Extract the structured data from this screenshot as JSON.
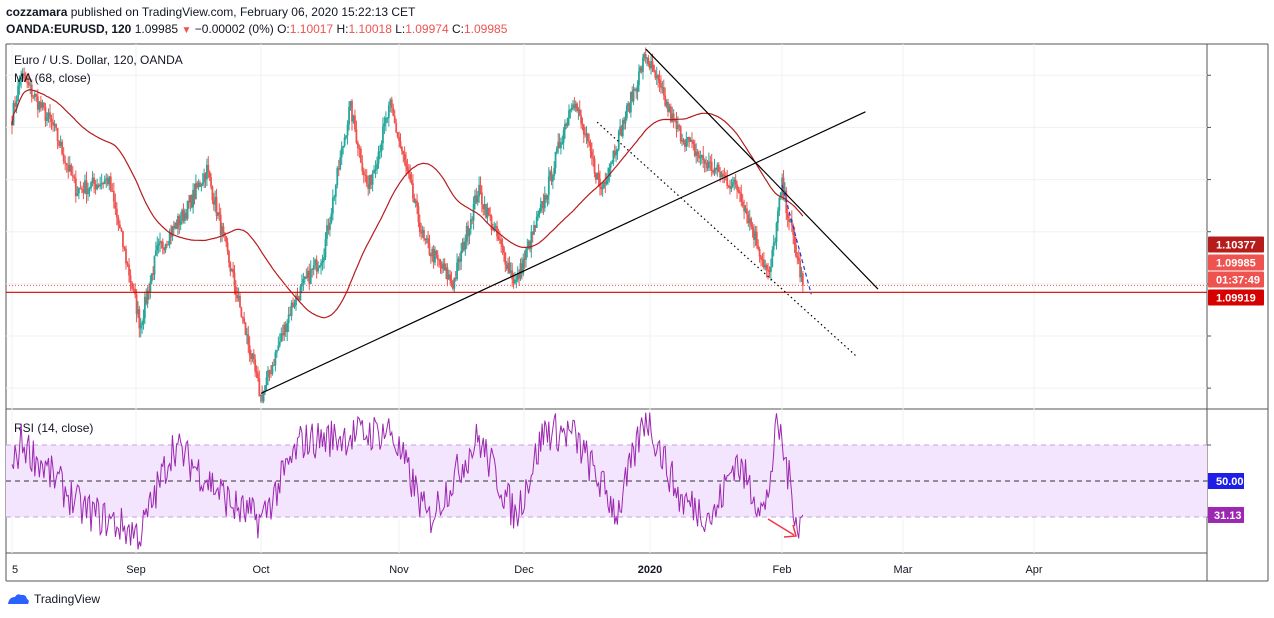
{
  "header": {
    "author": "cozzamara",
    "published_text": "published on TradingView.com, February 06, 2020 15:22:13 CET",
    "symbol": "OANDA:EURUSD, 120",
    "last": "1.09985",
    "change": "−0.00002 (0%)",
    "o_label": "O:",
    "o_val": "1.10017",
    "h_label": "H:",
    "h_val": "1.10018",
    "l_label": "L:",
    "l_val": "1.09974",
    "c_label": "C:",
    "c_val": "1.09985"
  },
  "legend": {
    "instrument": "Euro / U.S. Dollar, 120, OANDA",
    "ma": "MA (68, close)",
    "rsi": "RSI (14, close)"
  },
  "price_labels": {
    "ma_value": "1.10377",
    "last_price": "1.09985",
    "countdown": "01:37:49",
    "support": "1.09919"
  },
  "rsi_labels": {
    "mid": "50.00",
    "current": "31.13"
  },
  "footer": {
    "brand": "TradingView"
  },
  "colors": {
    "up": "#26a69a",
    "down": "#ef5350",
    "ma": "#b71c1c",
    "rsi": "#9c27b0",
    "rsi_band": "#f3e5fd",
    "support": "#d50000",
    "trend": "#000000",
    "projection": "#1e3ad6"
  },
  "chart_data": [
    {
      "type": "candlestick",
      "title": "Euro / U.S. Dollar, 120, OANDA",
      "x_ticks": [
        "5",
        "Sep",
        "Oct",
        "Nov",
        "Dec",
        "2020",
        "Feb",
        "Mar",
        "Apr"
      ],
      "ylim": [
        1.088,
        1.123
      ],
      "overlays": [
        "MA (68, close)"
      ],
      "horizontal_lines": [
        1.09919
      ],
      "series_path_approx": [
        {
          "date": "2019-08-05",
          "close": 1.116
        },
        {
          "date": "2019-08-07",
          "close": 1.12
        },
        {
          "date": "2019-08-14",
          "close": 1.115
        },
        {
          "date": "2019-08-19",
          "close": 1.109
        },
        {
          "date": "2019-08-26",
          "close": 1.11
        },
        {
          "date": "2019-09-02",
          "close": 1.096
        },
        {
          "date": "2019-09-06",
          "close": 1.103
        },
        {
          "date": "2019-09-13",
          "close": 1.107
        },
        {
          "date": "2019-09-18",
          "close": 1.111
        },
        {
          "date": "2019-09-24",
          "close": 1.101
        },
        {
          "date": "2019-10-01",
          "close": 1.089
        },
        {
          "date": "2019-10-08",
          "close": 1.098
        },
        {
          "date": "2019-10-15",
          "close": 1.103
        },
        {
          "date": "2019-10-21",
          "close": 1.117
        },
        {
          "date": "2019-10-25",
          "close": 1.109
        },
        {
          "date": "2019-10-30",
          "close": 1.117
        },
        {
          "date": "2019-11-07",
          "close": 1.104
        },
        {
          "date": "2019-11-14",
          "close": 1.1
        },
        {
          "date": "2019-11-20",
          "close": 1.109
        },
        {
          "date": "2019-11-29",
          "close": 1.1
        },
        {
          "date": "2019-12-06",
          "close": 1.108
        },
        {
          "date": "2019-12-13",
          "close": 1.118
        },
        {
          "date": "2019-12-20",
          "close": 1.109
        },
        {
          "date": "2019-12-31",
          "close": 1.122
        },
        {
          "date": "2020-01-07",
          "close": 1.115
        },
        {
          "date": "2020-01-13",
          "close": 1.112
        },
        {
          "date": "2020-01-22",
          "close": 1.109
        },
        {
          "date": "2020-01-29",
          "close": 1.1005
        },
        {
          "date": "2020-02-01",
          "close": 1.1095
        },
        {
          "date": "2020-02-06",
          "close": 1.09985
        }
      ],
      "trend_lines": [
        {
          "style": "solid",
          "from": [
            "2019-10-01",
            1.0895
          ],
          "to": [
            "2020-02-21",
            1.1165
          ]
        },
        {
          "style": "solid",
          "from": [
            "2019-12-31",
            1.1225
          ],
          "to": [
            "2020-02-24",
            1.0995
          ]
        },
        {
          "style": "dotted",
          "from": [
            "2019-12-19",
            1.1155
          ],
          "to": [
            "2020-02-19",
            1.093
          ]
        },
        {
          "style": "dashed",
          "from": [
            "2020-02-01",
            1.1095
          ],
          "to": [
            "2020-02-08",
            1.099
          ]
        }
      ]
    },
    {
      "type": "line",
      "title": "RSI (14, close)",
      "ylim": [
        10,
        90
      ],
      "bands": [
        30,
        70
      ],
      "midline": 50,
      "series_path_approx": [
        {
          "date": "2019-08-05",
          "rsi": 55
        },
        {
          "date": "2019-08-07",
          "rsi": 72
        },
        {
          "date": "2019-08-20",
          "rsi": 35
        },
        {
          "date": "2019-09-02",
          "rsi": 20
        },
        {
          "date": "2019-09-10",
          "rsi": 70
        },
        {
          "date": "2019-09-25",
          "rsi": 35
        },
        {
          "date": "2019-10-01",
          "rsi": 28
        },
        {
          "date": "2019-10-10",
          "rsi": 72
        },
        {
          "date": "2019-10-30",
          "rsi": 78
        },
        {
          "date": "2019-11-08",
          "rsi": 28
        },
        {
          "date": "2019-11-20",
          "rsi": 74
        },
        {
          "date": "2019-11-29",
          "rsi": 30
        },
        {
          "date": "2019-12-06",
          "rsi": 78
        },
        {
          "date": "2019-12-13",
          "rsi": 76
        },
        {
          "date": "2019-12-24",
          "rsi": 32
        },
        {
          "date": "2019-12-31",
          "rsi": 87
        },
        {
          "date": "2020-01-08",
          "rsi": 40
        },
        {
          "date": "2020-01-16",
          "rsi": 30
        },
        {
          "date": "2020-01-21",
          "rsi": 62
        },
        {
          "date": "2020-01-28",
          "rsi": 32
        },
        {
          "date": "2020-01-31",
          "rsi": 82
        },
        {
          "date": "2020-02-05",
          "rsi": 24
        },
        {
          "date": "2020-02-06",
          "rsi": 31.13
        }
      ]
    }
  ]
}
